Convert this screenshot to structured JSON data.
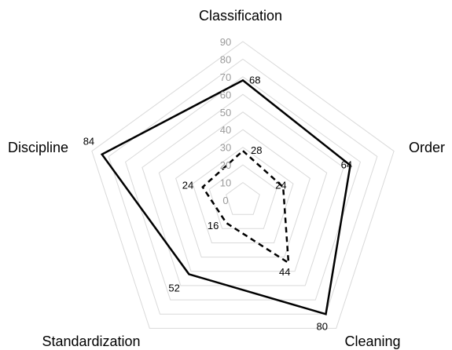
{
  "chart_data": {
    "type": "radar",
    "categories": [
      "Classification",
      "Order",
      "Cleaning",
      "Standardization",
      "Discipline"
    ],
    "series": [
      {
        "values": [
          68,
          64,
          80,
          52,
          84
        ],
        "line_style": "solid",
        "color": "#000000"
      },
      {
        "values": [
          28,
          24,
          44,
          16,
          24
        ],
        "line_style": "dashed",
        "color": "#000000"
      }
    ],
    "ticks": [
      0,
      10,
      20,
      30,
      40,
      50,
      60,
      70,
      80,
      90
    ],
    "rlim": [
      0,
      90
    ],
    "grid": true,
    "grid_color": "#d9d9d9",
    "tick_color": "#9a9a9a",
    "legend": "none"
  }
}
